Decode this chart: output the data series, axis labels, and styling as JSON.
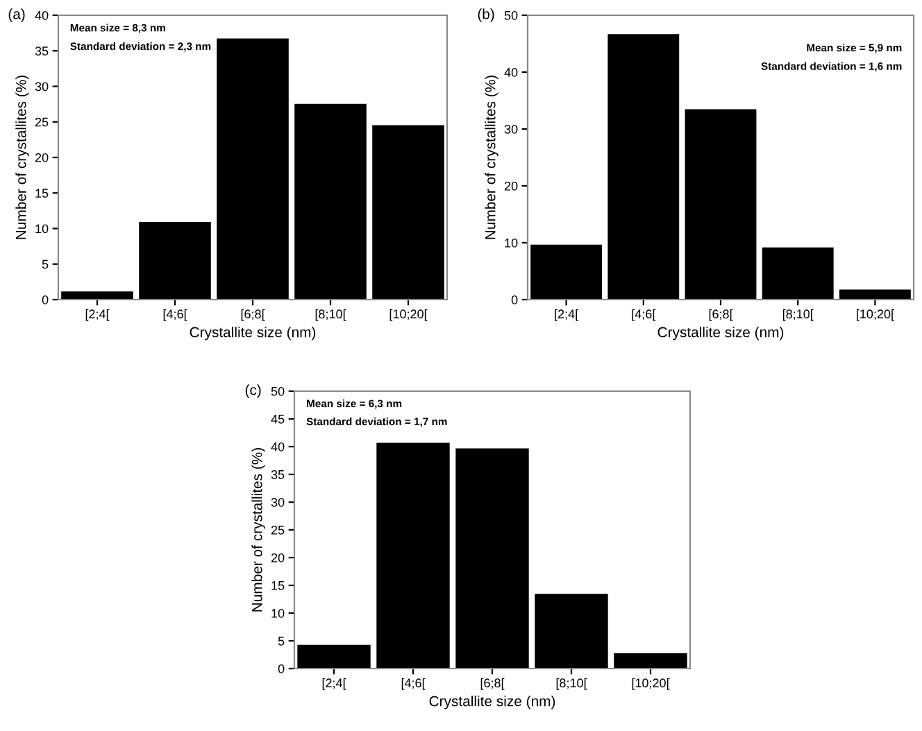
{
  "chart_data": [
    {
      "type": "bar",
      "title": "(a)",
      "xlabel": "Crystallite size (nm)",
      "ylabel": "Number of crystallites (%)",
      "categories": [
        "[2;4[",
        "[4;6[",
        "[6;8[",
        "[8;10[",
        "[10;20["
      ],
      "values": [
        1.0,
        10.8,
        36.6,
        27.4,
        24.4
      ],
      "color": "#000000",
      "ylim": [
        0,
        40
      ],
      "yticks": [
        0,
        5,
        10,
        15,
        20,
        25,
        30,
        35,
        40
      ],
      "annotations": [
        "Mean size = 8,3 nm",
        "Standard deviation = 2,3 nm"
      ]
    },
    {
      "type": "bar",
      "title": "(b)",
      "xlabel": "Crystallite size (nm)",
      "ylabel": "Number of crystallites (%)",
      "categories": [
        "[2;4[",
        "[4;6[",
        "[6;8[",
        "[8;10[",
        "[10;20["
      ],
      "values": [
        9.5,
        46.5,
        33.3,
        9.0,
        1.6
      ],
      "color": "#000000",
      "ylim": [
        0,
        50
      ],
      "yticks": [
        0,
        10,
        20,
        30,
        40,
        50
      ],
      "annotations": [
        "Mean size = 5,9 nm",
        "Standard deviation = 1,6 nm"
      ]
    },
    {
      "type": "bar",
      "title": "(c)",
      "xlabel": "Crystallite size (nm)",
      "ylabel": "Number of crystallites (%)",
      "categories": [
        "[2;4[",
        "[4;6[",
        "[6;8[",
        "[8;10[",
        "[10;20["
      ],
      "values": [
        4.1,
        40.5,
        39.5,
        13.3,
        2.6
      ],
      "color": "#000000",
      "ylim": [
        0,
        50
      ],
      "yticks": [
        0,
        5,
        10,
        15,
        20,
        25,
        30,
        35,
        40,
        45,
        50
      ],
      "annotations": [
        "Mean size = 6,3 nm",
        "Standard deviation = 1,7 nm"
      ]
    }
  ]
}
